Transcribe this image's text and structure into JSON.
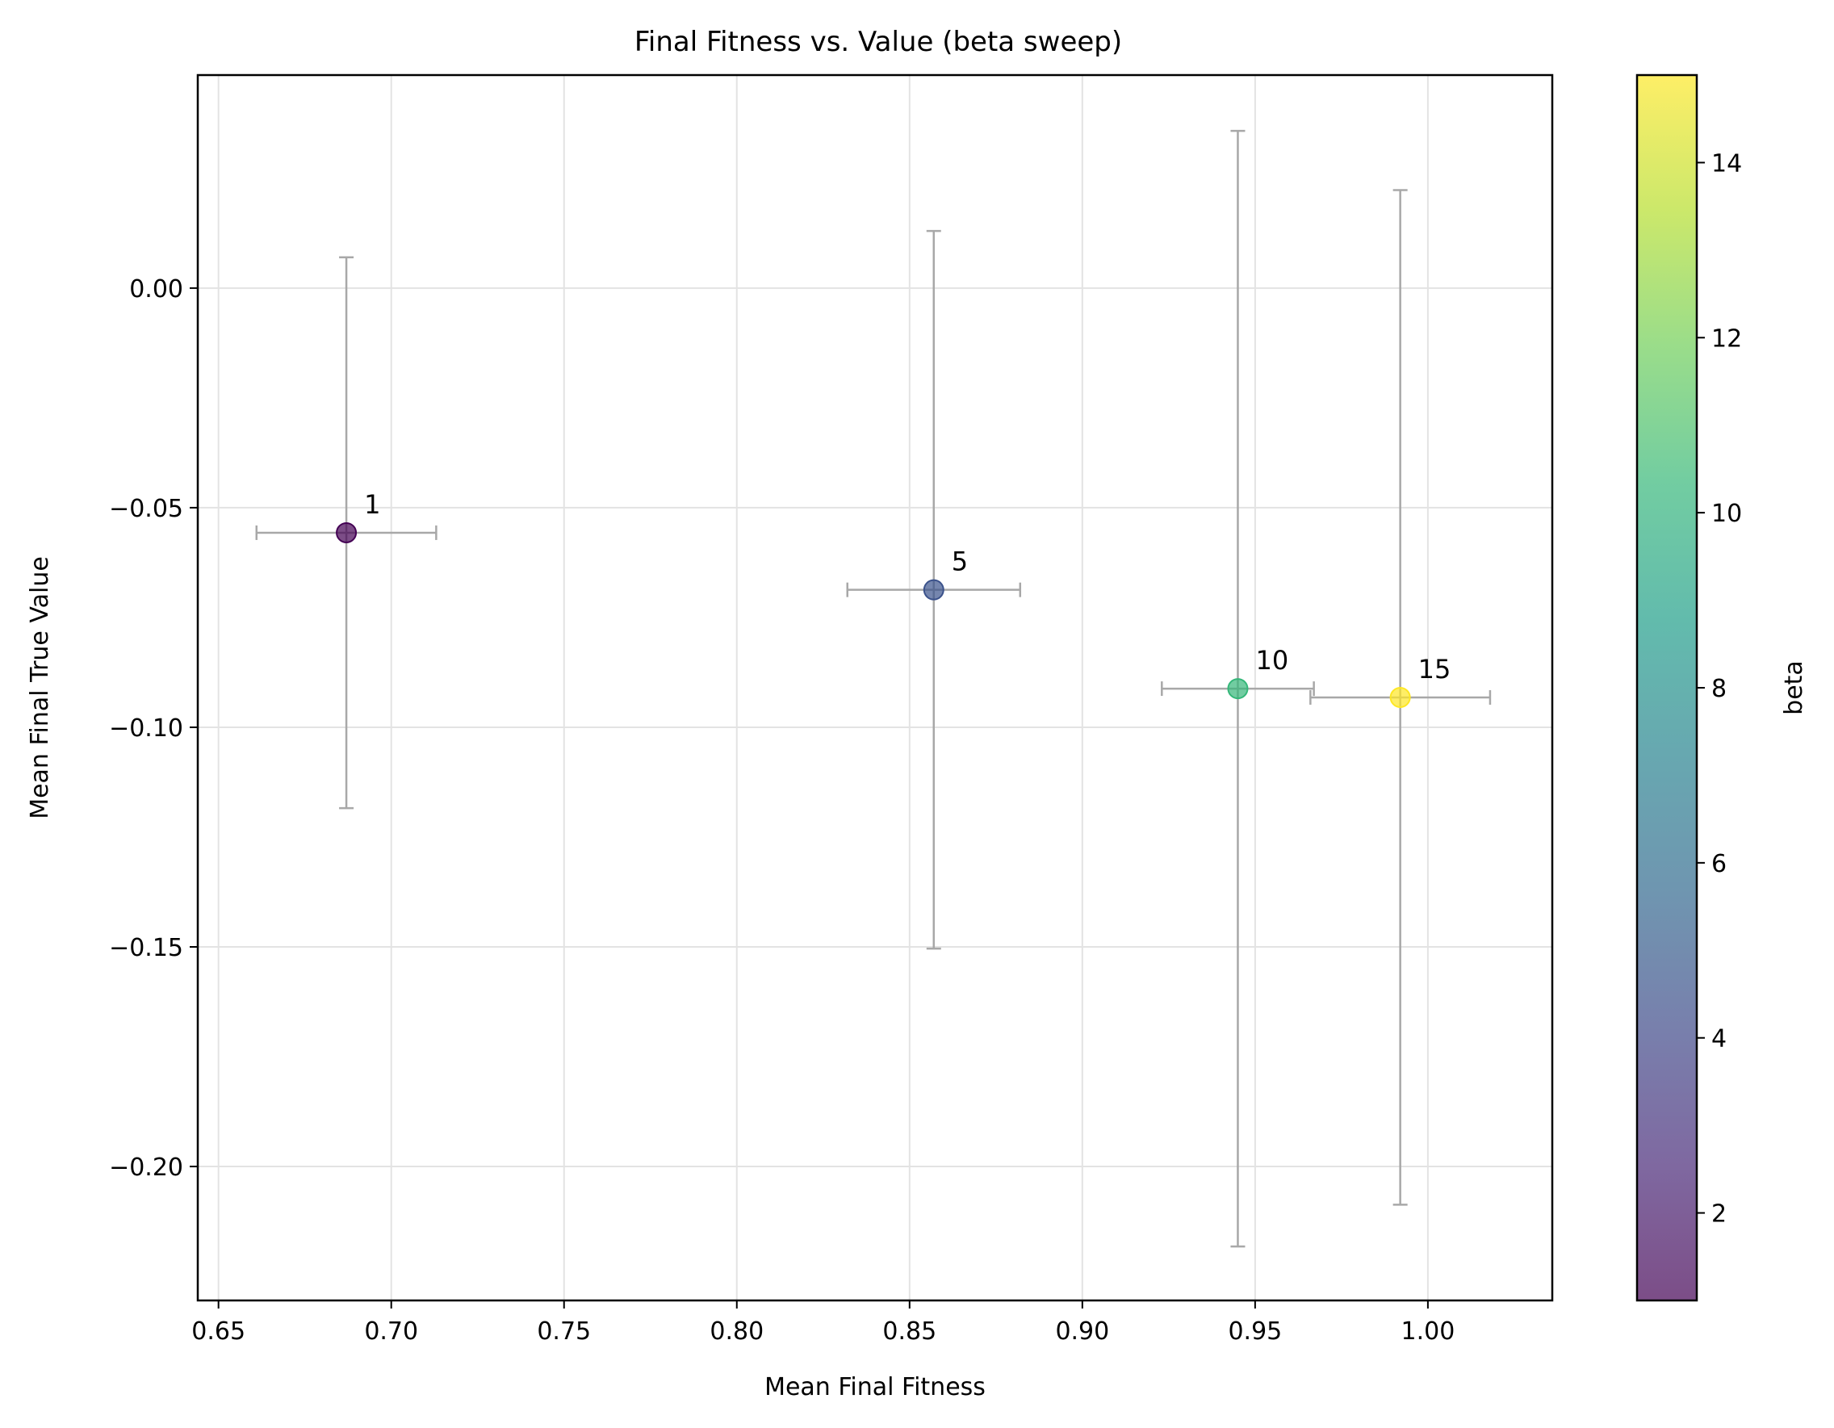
{
  "chart_data": {
    "type": "scatter",
    "title": "Final Fitness vs. Value (beta sweep)",
    "xlabel": "Mean Final Fitness",
    "ylabel": "Mean Final True Value",
    "xlim": [
      0.644,
      1.036
    ],
    "ylim": [
      -0.2305,
      0.0485
    ],
    "xticks": [
      0.65,
      0.7,
      0.75,
      0.8,
      0.85,
      0.9,
      0.95,
      1.0
    ],
    "xtick_labels": [
      "0.65",
      "0.70",
      "0.75",
      "0.80",
      "0.85",
      "0.90",
      "0.95",
      "1.00"
    ],
    "yticks": [
      0.0,
      -0.05,
      -0.1,
      -0.15,
      -0.2
    ],
    "ytick_labels": [
      "0.00",
      "−0.05",
      "−0.10",
      "−0.15",
      "−0.20"
    ],
    "grid": true,
    "points": [
      {
        "label": "1",
        "beta": 1,
        "x": 0.687,
        "y": -0.0557,
        "xerr": 0.026,
        "yerr_low": 0.0627,
        "yerr_high": 0.0627,
        "color": "#440154"
      },
      {
        "label": "5",
        "beta": 5,
        "x": 0.857,
        "y": -0.0687,
        "xerr": 0.025,
        "yerr_low": 0.0817,
        "yerr_high": 0.0817,
        "color": "#3b528b"
      },
      {
        "label": "10",
        "beta": 10,
        "x": 0.945,
        "y": -0.0912,
        "xerr": 0.022,
        "yerr_low": 0.127,
        "yerr_high": 0.127,
        "color": "#35b779"
      },
      {
        "label": "15",
        "beta": 15,
        "x": 0.992,
        "y": -0.0932,
        "xerr": 0.026,
        "yerr_low": 0.1155,
        "yerr_high": 0.1155,
        "color": "#fde725"
      }
    ],
    "errorbar_color": "#a8a8a8",
    "marker_alpha": 0.7,
    "colorbar": {
      "label": "beta",
      "range": [
        1,
        15
      ],
      "ticks": [
        2,
        4,
        6,
        8,
        10,
        12,
        14
      ],
      "colormap": "viridis",
      "stops": [
        "#440154",
        "#482878",
        "#3e4989",
        "#31688e",
        "#26828e",
        "#1f9e89",
        "#35b779",
        "#6ece58",
        "#b5de2b",
        "#fde725"
      ]
    }
  }
}
